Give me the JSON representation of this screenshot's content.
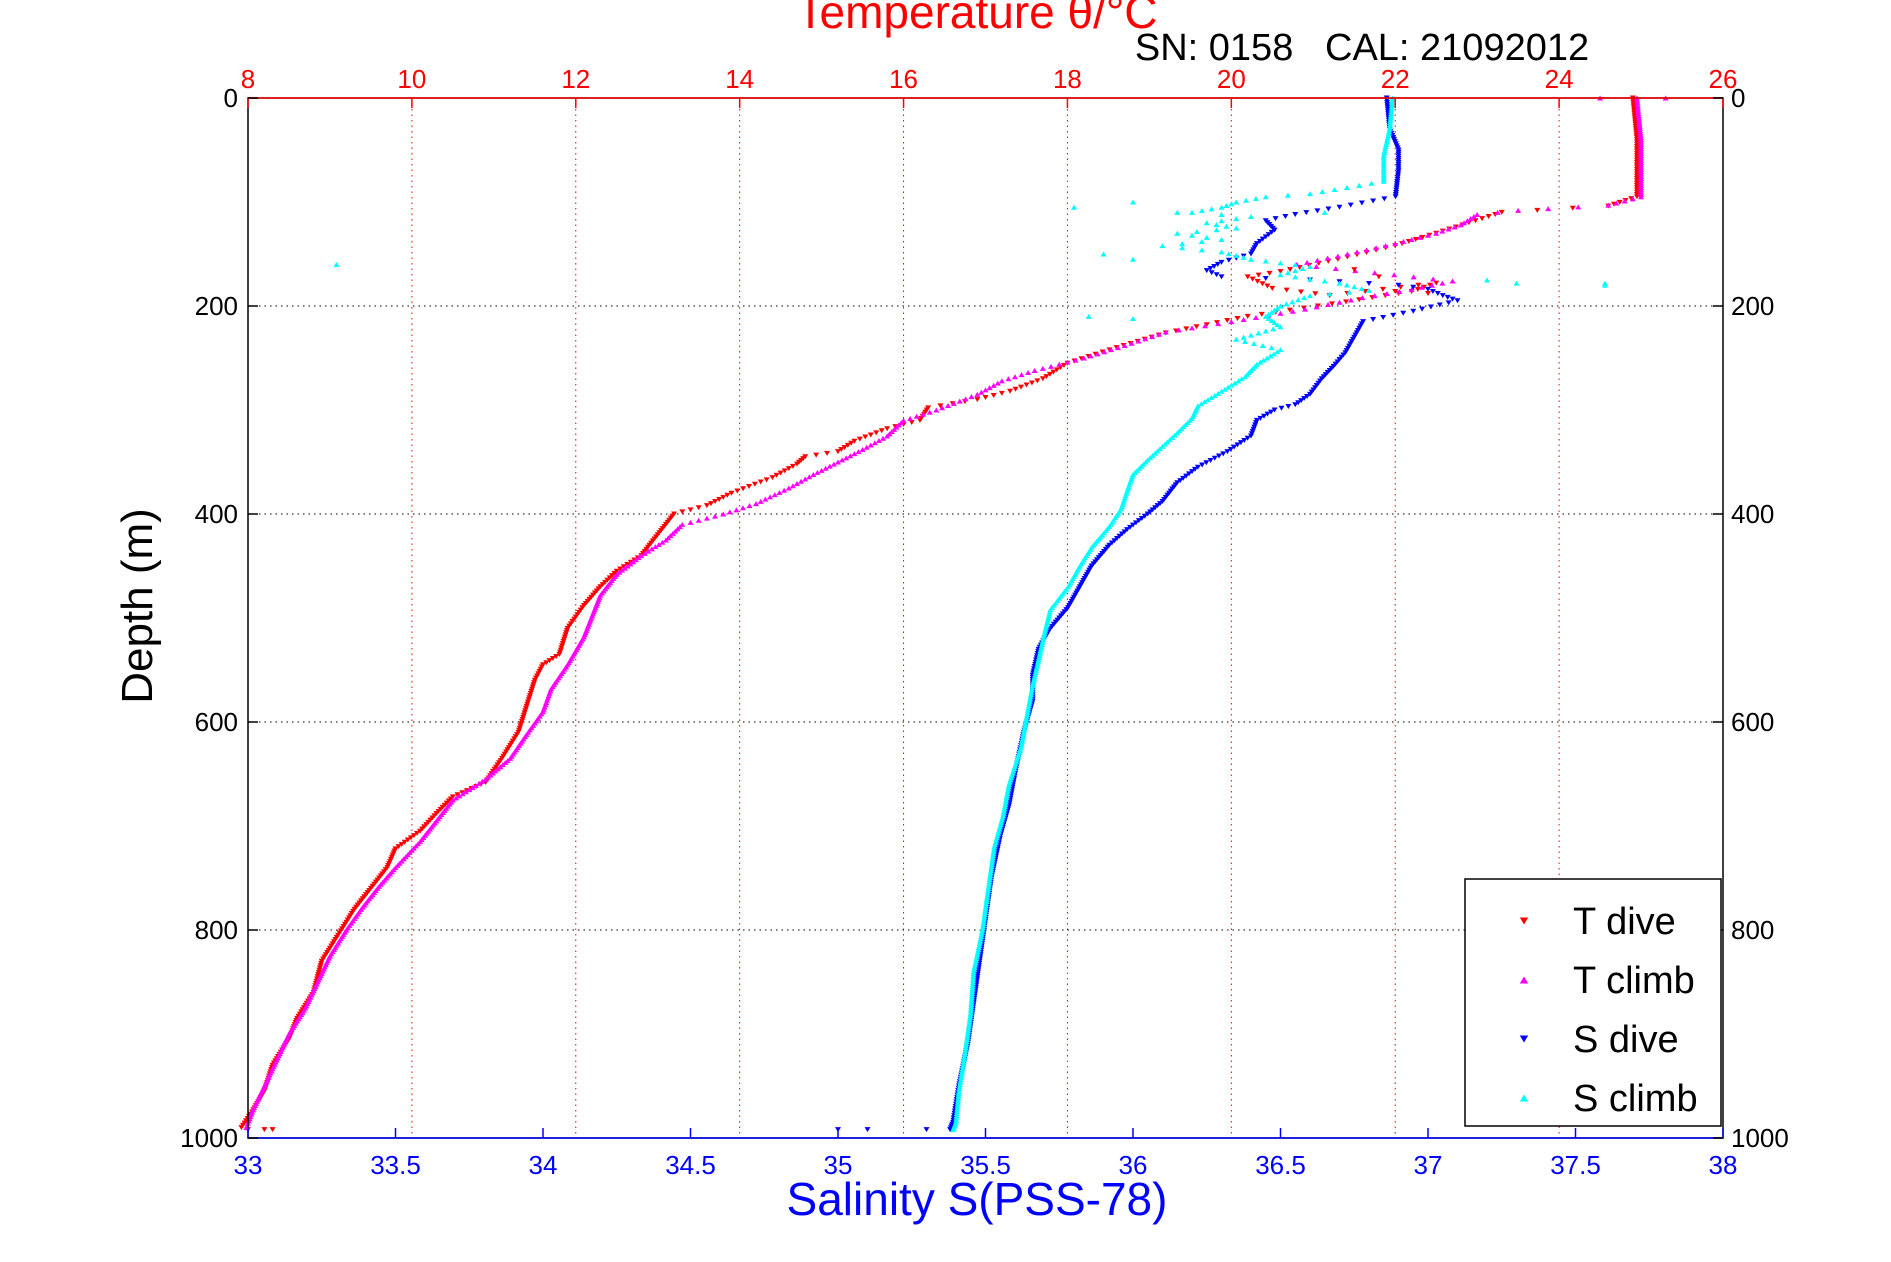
{
  "chart_data": {
    "type": "scatter",
    "title": "Temperature θ/°C",
    "subtitle": "SN: 0158   CAL: 21092012",
    "xlabel": "Salinity S(PSS-78)",
    "ylabel": "Depth (m)",
    "x_temp": {
      "range": [
        8,
        26
      ],
      "ticks": [
        "8",
        "10",
        "12",
        "14",
        "16",
        "18",
        "20",
        "22",
        "24",
        "26"
      ],
      "color": "#ff0000"
    },
    "x_sal": {
      "range": [
        33,
        38
      ],
      "ticks": [
        "33",
        "33.5",
        "34",
        "34.5",
        "35",
        "35.5",
        "36",
        "36.5",
        "37",
        "37.5",
        "38"
      ],
      "color": "#0000ff"
    },
    "y_depth": {
      "range": [
        0,
        1000
      ],
      "reversed": true,
      "ticks": [
        "0",
        "200",
        "400",
        "600",
        "800",
        "1000"
      ]
    },
    "grid": true,
    "legend": {
      "placement": "bottom-right"
    },
    "series": [
      {
        "name": "T dive",
        "axis": "temperature",
        "color": "#ff0000",
        "marker": "triangle-down",
        "points": [
          [
            24.9,
            0
          ],
          [
            24.95,
            40
          ],
          [
            24.95,
            95
          ],
          [
            24.6,
            104
          ],
          [
            23.3,
            110
          ],
          [
            22.9,
            120
          ],
          [
            22.5,
            130
          ],
          [
            22.0,
            142
          ],
          [
            21.3,
            155
          ],
          [
            20.6,
            167
          ],
          [
            20.2,
            172
          ],
          [
            20.5,
            183
          ],
          [
            21.2,
            190
          ],
          [
            22.5,
            178
          ],
          [
            22.2,
            186
          ],
          [
            21.4,
            196
          ],
          [
            20.2,
            210
          ],
          [
            19.2,
            226
          ],
          [
            18.6,
            240
          ],
          [
            18.0,
            255
          ],
          [
            17.7,
            270
          ],
          [
            17.3,
            282
          ],
          [
            16.9,
            290
          ],
          [
            16.3,
            298
          ],
          [
            16.2,
            310
          ],
          [
            15.8,
            318
          ],
          [
            15.4,
            330
          ],
          [
            15.2,
            340
          ],
          [
            14.8,
            345
          ],
          [
            14.7,
            352
          ],
          [
            14.4,
            365
          ],
          [
            13.9,
            380
          ],
          [
            13.6,
            392
          ],
          [
            13.2,
            400
          ],
          [
            13.0,
            420
          ],
          [
            12.8,
            440
          ],
          [
            12.5,
            455
          ],
          [
            12.3,
            470
          ],
          [
            12.1,
            488
          ],
          [
            11.9,
            510
          ],
          [
            11.8,
            535
          ],
          [
            11.6,
            545
          ],
          [
            11.5,
            560
          ],
          [
            11.4,
            585
          ],
          [
            11.3,
            610
          ],
          [
            11.1,
            635
          ],
          [
            10.9,
            658
          ],
          [
            10.5,
            672
          ],
          [
            10.3,
            688
          ],
          [
            10.1,
            705
          ],
          [
            9.8,
            722
          ],
          [
            9.7,
            740
          ],
          [
            9.5,
            760
          ],
          [
            9.3,
            780
          ],
          [
            9.1,
            805
          ],
          [
            8.9,
            830
          ],
          [
            8.8,
            860
          ],
          [
            8.6,
            885
          ],
          [
            8.5,
            905
          ],
          [
            8.3,
            930
          ],
          [
            8.2,
            955
          ],
          [
            8.05,
            975
          ],
          [
            7.92,
            990
          ],
          [
            8.0,
            992
          ],
          [
            8.2,
            992
          ],
          [
            8.3,
            992
          ]
        ]
      },
      {
        "name": "T climb",
        "axis": "temperature",
        "color": "#ff00ff",
        "marker": "triangle-up",
        "points": [
          [
            24.95,
            0
          ],
          [
            25.0,
            40
          ],
          [
            25.0,
            95
          ],
          [
            24.6,
            103
          ],
          [
            23.5,
            108
          ],
          [
            23.0,
            112
          ],
          [
            22.8,
            122
          ],
          [
            22.5,
            130
          ],
          [
            22.0,
            140
          ],
          [
            21.3,
            152
          ],
          [
            20.8,
            160
          ],
          [
            22.7,
            176
          ],
          [
            22.2,
            184
          ],
          [
            21.6,
            192
          ],
          [
            20.9,
            203
          ],
          [
            20.0,
            215
          ],
          [
            19.2,
            225
          ],
          [
            18.7,
            238
          ],
          [
            18.2,
            250
          ],
          [
            17.6,
            262
          ],
          [
            17.2,
            272
          ],
          [
            16.9,
            285
          ],
          [
            16.4,
            300
          ],
          [
            16.0,
            310
          ],
          [
            15.8,
            325
          ],
          [
            15.5,
            338
          ],
          [
            15.2,
            350
          ],
          [
            14.9,
            362
          ],
          [
            14.6,
            375
          ],
          [
            14.2,
            390
          ],
          [
            13.8,
            400
          ],
          [
            13.3,
            410
          ],
          [
            13.1,
            425
          ],
          [
            12.8,
            440
          ],
          [
            12.5,
            458
          ],
          [
            12.3,
            478
          ],
          [
            12.2,
            498
          ],
          [
            12.1,
            518
          ],
          [
            11.9,
            545
          ],
          [
            11.7,
            568
          ],
          [
            11.6,
            590
          ],
          [
            11.4,
            612
          ],
          [
            11.2,
            635
          ],
          [
            10.9,
            655
          ],
          [
            10.5,
            675
          ],
          [
            10.3,
            695
          ],
          [
            10.1,
            715
          ],
          [
            9.8,
            740
          ],
          [
            9.6,
            758
          ],
          [
            9.4,
            778
          ],
          [
            9.2,
            800
          ],
          [
            9.0,
            825
          ],
          [
            8.85,
            850
          ],
          [
            8.7,
            875
          ],
          [
            8.5,
            900
          ],
          [
            8.35,
            925
          ],
          [
            8.2,
            950
          ],
          [
            8.05,
            975
          ],
          [
            7.98,
            990
          ]
        ]
      },
      {
        "name": "S dive",
        "axis": "salinity",
        "color": "#0000ff",
        "marker": "triangle-down",
        "points": [
          [
            36.86,
            0
          ],
          [
            36.87,
            30
          ],
          [
            36.9,
            50
          ],
          [
            36.9,
            70
          ],
          [
            36.89,
            95
          ],
          [
            36.7,
            105
          ],
          [
            36.55,
            112
          ],
          [
            36.45,
            118
          ],
          [
            36.48,
            127
          ],
          [
            36.42,
            140
          ],
          [
            36.4,
            150
          ],
          [
            36.3,
            158
          ],
          [
            36.25,
            166
          ],
          [
            36.3,
            172
          ],
          [
            36.6,
            175
          ],
          [
            36.9,
            180
          ],
          [
            37.0,
            184
          ],
          [
            37.05,
            190
          ],
          [
            37.1,
            195
          ],
          [
            36.95,
            205
          ],
          [
            36.78,
            215
          ],
          [
            36.75,
            230
          ],
          [
            36.72,
            245
          ],
          [
            36.68,
            258
          ],
          [
            36.64,
            270
          ],
          [
            36.6,
            285
          ],
          [
            36.55,
            295
          ],
          [
            36.48,
            300
          ],
          [
            36.42,
            310
          ],
          [
            36.4,
            325
          ],
          [
            36.32,
            340
          ],
          [
            36.22,
            355
          ],
          [
            36.15,
            370
          ],
          [
            36.1,
            388
          ],
          [
            36.05,
            400
          ],
          [
            35.98,
            415
          ],
          [
            35.92,
            430
          ],
          [
            35.86,
            450
          ],
          [
            35.82,
            470
          ],
          [
            35.78,
            490
          ],
          [
            35.72,
            510
          ],
          [
            35.68,
            530
          ],
          [
            35.66,
            555
          ],
          [
            35.66,
            580
          ],
          [
            35.63,
            610
          ],
          [
            35.6,
            650
          ],
          [
            35.58,
            680
          ],
          [
            35.55,
            710
          ],
          [
            35.52,
            750
          ],
          [
            35.5,
            790
          ],
          [
            35.48,
            830
          ],
          [
            35.46,
            870
          ],
          [
            35.44,
            910
          ],
          [
            35.41,
            950
          ],
          [
            35.39,
            985
          ],
          [
            35.38,
            992
          ],
          [
            35.3,
            992
          ],
          [
            35.1,
            992
          ],
          [
            35.0,
            992
          ]
        ]
      },
      {
        "name": "S climb",
        "axis": "salinity",
        "color": "#00ffff",
        "marker": "triangle-up",
        "points": [
          [
            36.88,
            0
          ],
          [
            36.87,
            30
          ],
          [
            36.85,
            55
          ],
          [
            36.85,
            80
          ],
          [
            36.6,
            92
          ],
          [
            36.45,
            95
          ],
          [
            36.35,
            100
          ],
          [
            36.3,
            105
          ],
          [
            36.2,
            110
          ],
          [
            36.4,
            114
          ],
          [
            36.25,
            120
          ],
          [
            36.35,
            125
          ],
          [
            36.15,
            130
          ],
          [
            36.3,
            136
          ],
          [
            36.1,
            142
          ],
          [
            36.3,
            148
          ],
          [
            36.4,
            155
          ],
          [
            36.6,
            162
          ],
          [
            36.5,
            170
          ],
          [
            36.7,
            178
          ],
          [
            36.8,
            185
          ],
          [
            36.6,
            190
          ],
          [
            36.5,
            200
          ],
          [
            36.45,
            210
          ],
          [
            36.5,
            220
          ],
          [
            36.35,
            232
          ],
          [
            36.5,
            242
          ],
          [
            36.42,
            256
          ],
          [
            36.38,
            268
          ],
          [
            36.3,
            282
          ],
          [
            36.22,
            296
          ],
          [
            36.2,
            308
          ],
          [
            36.15,
            322
          ],
          [
            36.1,
            335
          ],
          [
            36.05,
            348
          ],
          [
            36.0,
            362
          ],
          [
            35.98,
            378
          ],
          [
            35.96,
            395
          ],
          [
            35.92,
            412
          ],
          [
            35.86,
            432
          ],
          [
            35.82,
            450
          ],
          [
            35.78,
            470
          ],
          [
            35.72,
            492
          ],
          [
            35.7,
            515
          ],
          [
            35.68,
            540
          ],
          [
            35.66,
            565
          ],
          [
            35.64,
            595
          ],
          [
            35.62,
            625
          ],
          [
            35.58,
            660
          ],
          [
            35.56,
            690
          ],
          [
            35.53,
            720
          ],
          [
            35.51,
            760
          ],
          [
            35.49,
            800
          ],
          [
            35.46,
            840
          ],
          [
            35.45,
            880
          ],
          [
            35.43,
            920
          ],
          [
            35.41,
            955
          ],
          [
            35.4,
            985
          ],
          [
            35.39,
            992
          ]
        ]
      }
    ],
    "outliers": [
      {
        "series": "S climb",
        "points": [
          [
            33.3,
            160
          ],
          [
            35.8,
            105
          ],
          [
            36.0,
            100
          ],
          [
            36.15,
            110
          ],
          [
            35.9,
            150
          ],
          [
            36.0,
            155
          ],
          [
            36.65,
            110
          ],
          [
            37.2,
            175
          ],
          [
            37.3,
            178
          ],
          [
            37.6,
            178
          ],
          [
            37.6,
            180
          ],
          [
            35.85,
            210
          ],
          [
            36.0,
            212
          ]
        ]
      },
      {
        "series": "T climb",
        "points": [
          [
            25.3,
            0
          ],
          [
            24.5,
            0
          ]
        ]
      },
      {
        "series": "T dive",
        "points": [
          [
            21.5,
            165
          ],
          [
            21.8,
            172
          ],
          [
            22.0,
            186
          ],
          [
            22.4,
            188
          ]
        ]
      }
    ]
  }
}
